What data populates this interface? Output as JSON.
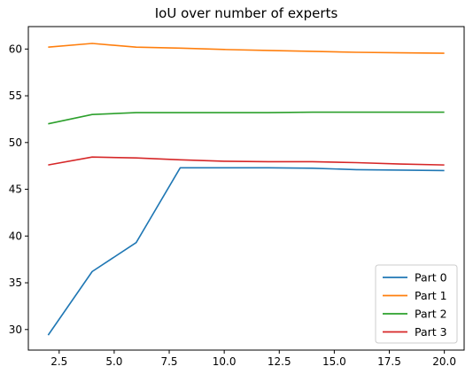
{
  "chart_data": {
    "type": "line",
    "title": "IoU over number of experts",
    "xlabel": "",
    "ylabel": "",
    "xlim": [
      1.1,
      20.9
    ],
    "ylim": [
      27.8,
      62.4
    ],
    "xticks": [
      2.5,
      5.0,
      7.5,
      10.0,
      12.5,
      15.0,
      17.5,
      20.0
    ],
    "xtick_labels": [
      "2.5",
      "5.0",
      "7.5",
      "10.0",
      "12.5",
      "15.0",
      "17.5",
      "20.0"
    ],
    "yticks": [
      30,
      35,
      40,
      45,
      50,
      55,
      60
    ],
    "ytick_labels": [
      "30",
      "35",
      "40",
      "45",
      "50",
      "55",
      "60"
    ],
    "grid": false,
    "legend_position": "bottom-right",
    "x": [
      2,
      4,
      6,
      8,
      10,
      12,
      14,
      16,
      18,
      20
    ],
    "series": [
      {
        "name": "Part 0",
        "color": "#1f77b4",
        "values": [
          29.4,
          36.2,
          39.3,
          47.3,
          47.3,
          47.3,
          47.25,
          47.1,
          47.05,
          47.0
        ]
      },
      {
        "name": "Part 1",
        "color": "#ff7f0e",
        "values": [
          60.2,
          60.6,
          60.2,
          60.1,
          59.95,
          59.85,
          59.75,
          59.65,
          59.6,
          59.55
        ]
      },
      {
        "name": "Part 2",
        "color": "#2ca02c",
        "values": [
          52.0,
          53.0,
          53.2,
          53.2,
          53.2,
          53.2,
          53.25,
          53.25,
          53.25,
          53.25
        ]
      },
      {
        "name": "Part 3",
        "color": "#d62728",
        "values": [
          47.6,
          48.45,
          48.35,
          48.15,
          48.0,
          47.95,
          47.95,
          47.85,
          47.7,
          47.6
        ]
      }
    ]
  }
}
